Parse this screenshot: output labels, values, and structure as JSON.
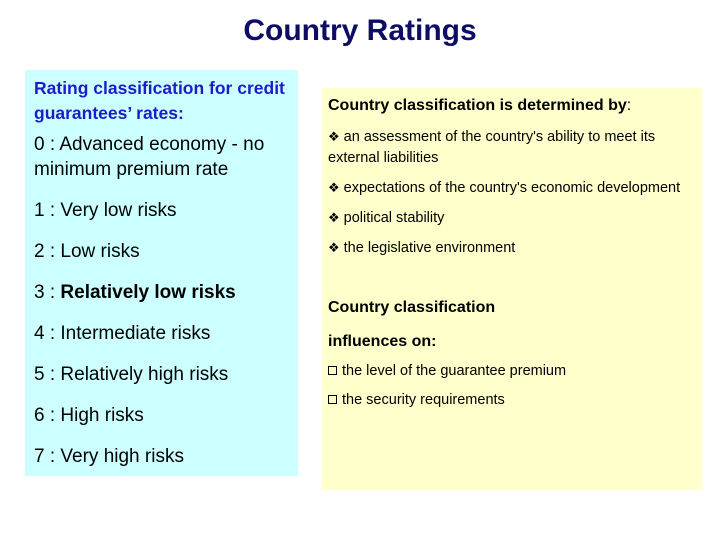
{
  "title": "Country Ratings",
  "left": {
    "heading": "Rating classification for credit guarantees’ rates:",
    "items": [
      {
        "prefix": "0 : ",
        "text": "Advanced economy - no minimum premium rate"
      },
      {
        "prefix": "1 : ",
        "text": "Very low risks"
      },
      {
        "prefix": "2 : ",
        "text": "Low risks"
      },
      {
        "prefix": "3 : ",
        "text": "Relatively low risks"
      },
      {
        "prefix": "4 : ",
        "text": "Intermediate risks"
      },
      {
        "prefix": "5 : ",
        "text": "Relatively high risks"
      },
      {
        "prefix": "6 : ",
        "text": "High risks"
      },
      {
        "prefix": "7 : ",
        "text": "Very high risks"
      }
    ]
  },
  "right": {
    "heading_bold": "Country classification is determined by",
    "heading_tail": ":",
    "bullets": [
      "an assessment of the country's ability to meet its external liabilities",
      "expectations of the country's economic development",
      "political stability",
      "the legislative environment"
    ],
    "heading2": "Country classification",
    "heading3": "influences on:",
    "square_bullets": [
      "the level of the guarantee premium",
      "the security requirements"
    ],
    "bullet_icon": "diamond-bullet-icon",
    "square_icon": "square-bullet-icon"
  },
  "colors": {
    "title": "#0d0d66",
    "left_heading": "#1c1cc8",
    "left_bg": "#ccffff",
    "right_bg": "#ffffcc"
  }
}
